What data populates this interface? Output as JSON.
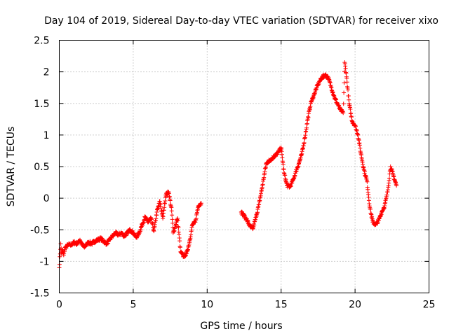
{
  "chart_data": {
    "type": "scatter",
    "title": "Day 104 of 2019, Sidereal Day-to-day VTEC variation (SDTVAR) for receiver xixo",
    "xlabel": "GPS time / hours",
    "ylabel": "SDTVAR / TECUs",
    "xlim": [
      0,
      25
    ],
    "ylim": [
      -1.5,
      2.5
    ],
    "x_ticks": [
      0,
      5,
      10,
      15,
      20,
      25
    ],
    "y_ticks": [
      -1.5,
      -1,
      -0.5,
      0,
      0.5,
      1,
      1.5,
      2,
      2.5
    ],
    "x_tick_labels": [
      "0",
      "5",
      "10",
      "15",
      "20",
      "25"
    ],
    "y_tick_labels": [
      "-1.5",
      "-1",
      "-0.5",
      "0",
      "0.5",
      "1",
      "1.5",
      "2",
      "2.5"
    ],
    "grid": true,
    "marker": "+",
    "color": "#ff0000",
    "series": [
      {
        "name": "SDTVAR",
        "x": [
          0.0,
          0.1,
          0.15,
          0.2,
          0.3,
          0.4,
          0.5,
          0.6,
          0.8,
          1.0,
          1.2,
          1.4,
          1.5,
          1.7,
          1.8,
          2.0,
          2.2,
          2.4,
          2.6,
          2.8,
          3.0,
          3.2,
          3.4,
          3.6,
          3.8,
          4.0,
          4.2,
          4.4,
          4.6,
          4.8,
          5.0,
          5.2,
          5.4,
          5.6,
          5.8,
          6.0,
          6.2,
          6.4,
          6.6,
          6.8,
          7.0,
          7.2,
          7.4,
          7.6,
          7.7,
          7.8,
          8.0,
          8.2,
          8.4,
          8.6,
          8.8,
          9.0,
          9.2,
          9.4,
          9.6,
          12.3,
          12.5,
          12.7,
          12.9,
          13.1,
          13.3,
          13.5,
          13.7,
          13.9,
          14.0,
          14.8,
          15.0,
          15.2,
          15.4,
          15.6,
          15.8,
          16.0,
          16.2,
          16.4,
          16.6,
          16.8,
          17.0,
          17.2,
          17.4,
          17.6,
          17.8,
          18.0,
          18.2,
          18.4,
          18.6,
          18.8,
          19.0,
          19.2,
          19.3,
          19.4,
          19.6,
          19.8,
          20.0,
          20.2,
          20.4,
          20.6,
          20.8,
          21.0,
          21.2,
          21.4,
          21.6,
          21.8,
          22.0,
          22.2,
          22.4,
          22.6,
          22.8
        ],
        "y": [
          -1.1,
          -0.72,
          -0.88,
          -0.82,
          -0.9,
          -0.78,
          -0.76,
          -0.74,
          -0.74,
          -0.7,
          -0.72,
          -0.66,
          -0.72,
          -0.78,
          -0.74,
          -0.7,
          -0.72,
          -0.68,
          -0.66,
          -0.64,
          -0.68,
          -0.72,
          -0.66,
          -0.6,
          -0.55,
          -0.58,
          -0.55,
          -0.6,
          -0.55,
          -0.5,
          -0.55,
          -0.62,
          -0.55,
          -0.42,
          -0.3,
          -0.38,
          -0.32,
          -0.52,
          -0.22,
          -0.05,
          -0.32,
          0.05,
          0.1,
          -0.2,
          -0.55,
          -0.48,
          -0.32,
          -0.85,
          -0.92,
          -0.88,
          -0.7,
          -0.42,
          -0.38,
          -0.12,
          -0.08,
          -0.22,
          -0.28,
          -0.35,
          -0.45,
          -0.48,
          -0.3,
          -0.1,
          0.15,
          0.42,
          0.55,
          0.72,
          0.8,
          0.4,
          0.2,
          0.18,
          0.28,
          0.42,
          0.55,
          0.7,
          0.95,
          1.25,
          1.5,
          1.62,
          1.75,
          1.85,
          1.92,
          1.95,
          1.9,
          1.75,
          1.6,
          1.5,
          1.4,
          1.35,
          2.15,
          1.98,
          1.5,
          1.22,
          1.15,
          1.0,
          0.7,
          0.45,
          0.28,
          -0.15,
          -0.38,
          -0.42,
          -0.35,
          -0.22,
          -0.12,
          0.1,
          0.5,
          0.35,
          0.2
        ]
      }
    ]
  }
}
